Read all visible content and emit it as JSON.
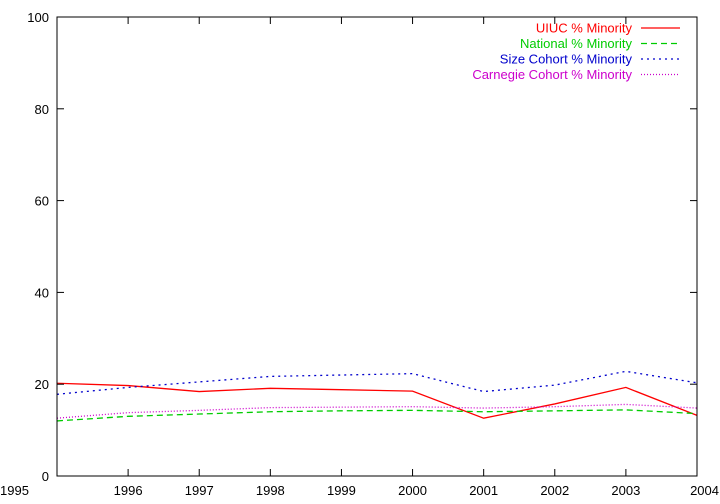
{
  "chart_data": {
    "type": "line",
    "title": "",
    "xlabel": "",
    "ylabel": "",
    "x": [
      1995,
      1996,
      1997,
      1998,
      1999,
      2000,
      2001,
      2002,
      2003,
      2004
    ],
    "xticks": [
      "1995",
      "1996",
      "1997",
      "1998",
      "1999",
      "2000",
      "2001",
      "2002",
      "2003",
      "2004"
    ],
    "yticks": [
      "0",
      "20",
      "40",
      "60",
      "80",
      "100"
    ],
    "xlim": [
      1995,
      2004
    ],
    "ylim": [
      0,
      100
    ],
    "grid": false,
    "legend_position": "top-right",
    "series": [
      {
        "name": "UIUC % Minority",
        "color": "#ff0000",
        "dash": "solid",
        "values": [
          20.2,
          19.7,
          18.4,
          19.1,
          18.8,
          18.5,
          12.6,
          15.7,
          19.3,
          13.2
        ]
      },
      {
        "name": "National % Minority",
        "color": "#00cc00",
        "dash": "dashed",
        "values": [
          12.0,
          13.0,
          13.5,
          14.0,
          14.2,
          14.3,
          14.0,
          14.2,
          14.4,
          13.6
        ]
      },
      {
        "name": "Size Cohort % Minority",
        "color": "#0000cc",
        "dash": "dotted",
        "values": [
          17.8,
          19.3,
          20.5,
          21.7,
          22.0,
          22.3,
          18.4,
          19.8,
          22.8,
          20.3
        ]
      },
      {
        "name": "Carnegie Cohort % Minority",
        "color": "#cc00cc",
        "dash": "fine-dotted",
        "values": [
          12.6,
          13.8,
          14.3,
          14.9,
          15.0,
          15.1,
          14.8,
          15.1,
          15.6,
          14.8
        ]
      }
    ]
  }
}
